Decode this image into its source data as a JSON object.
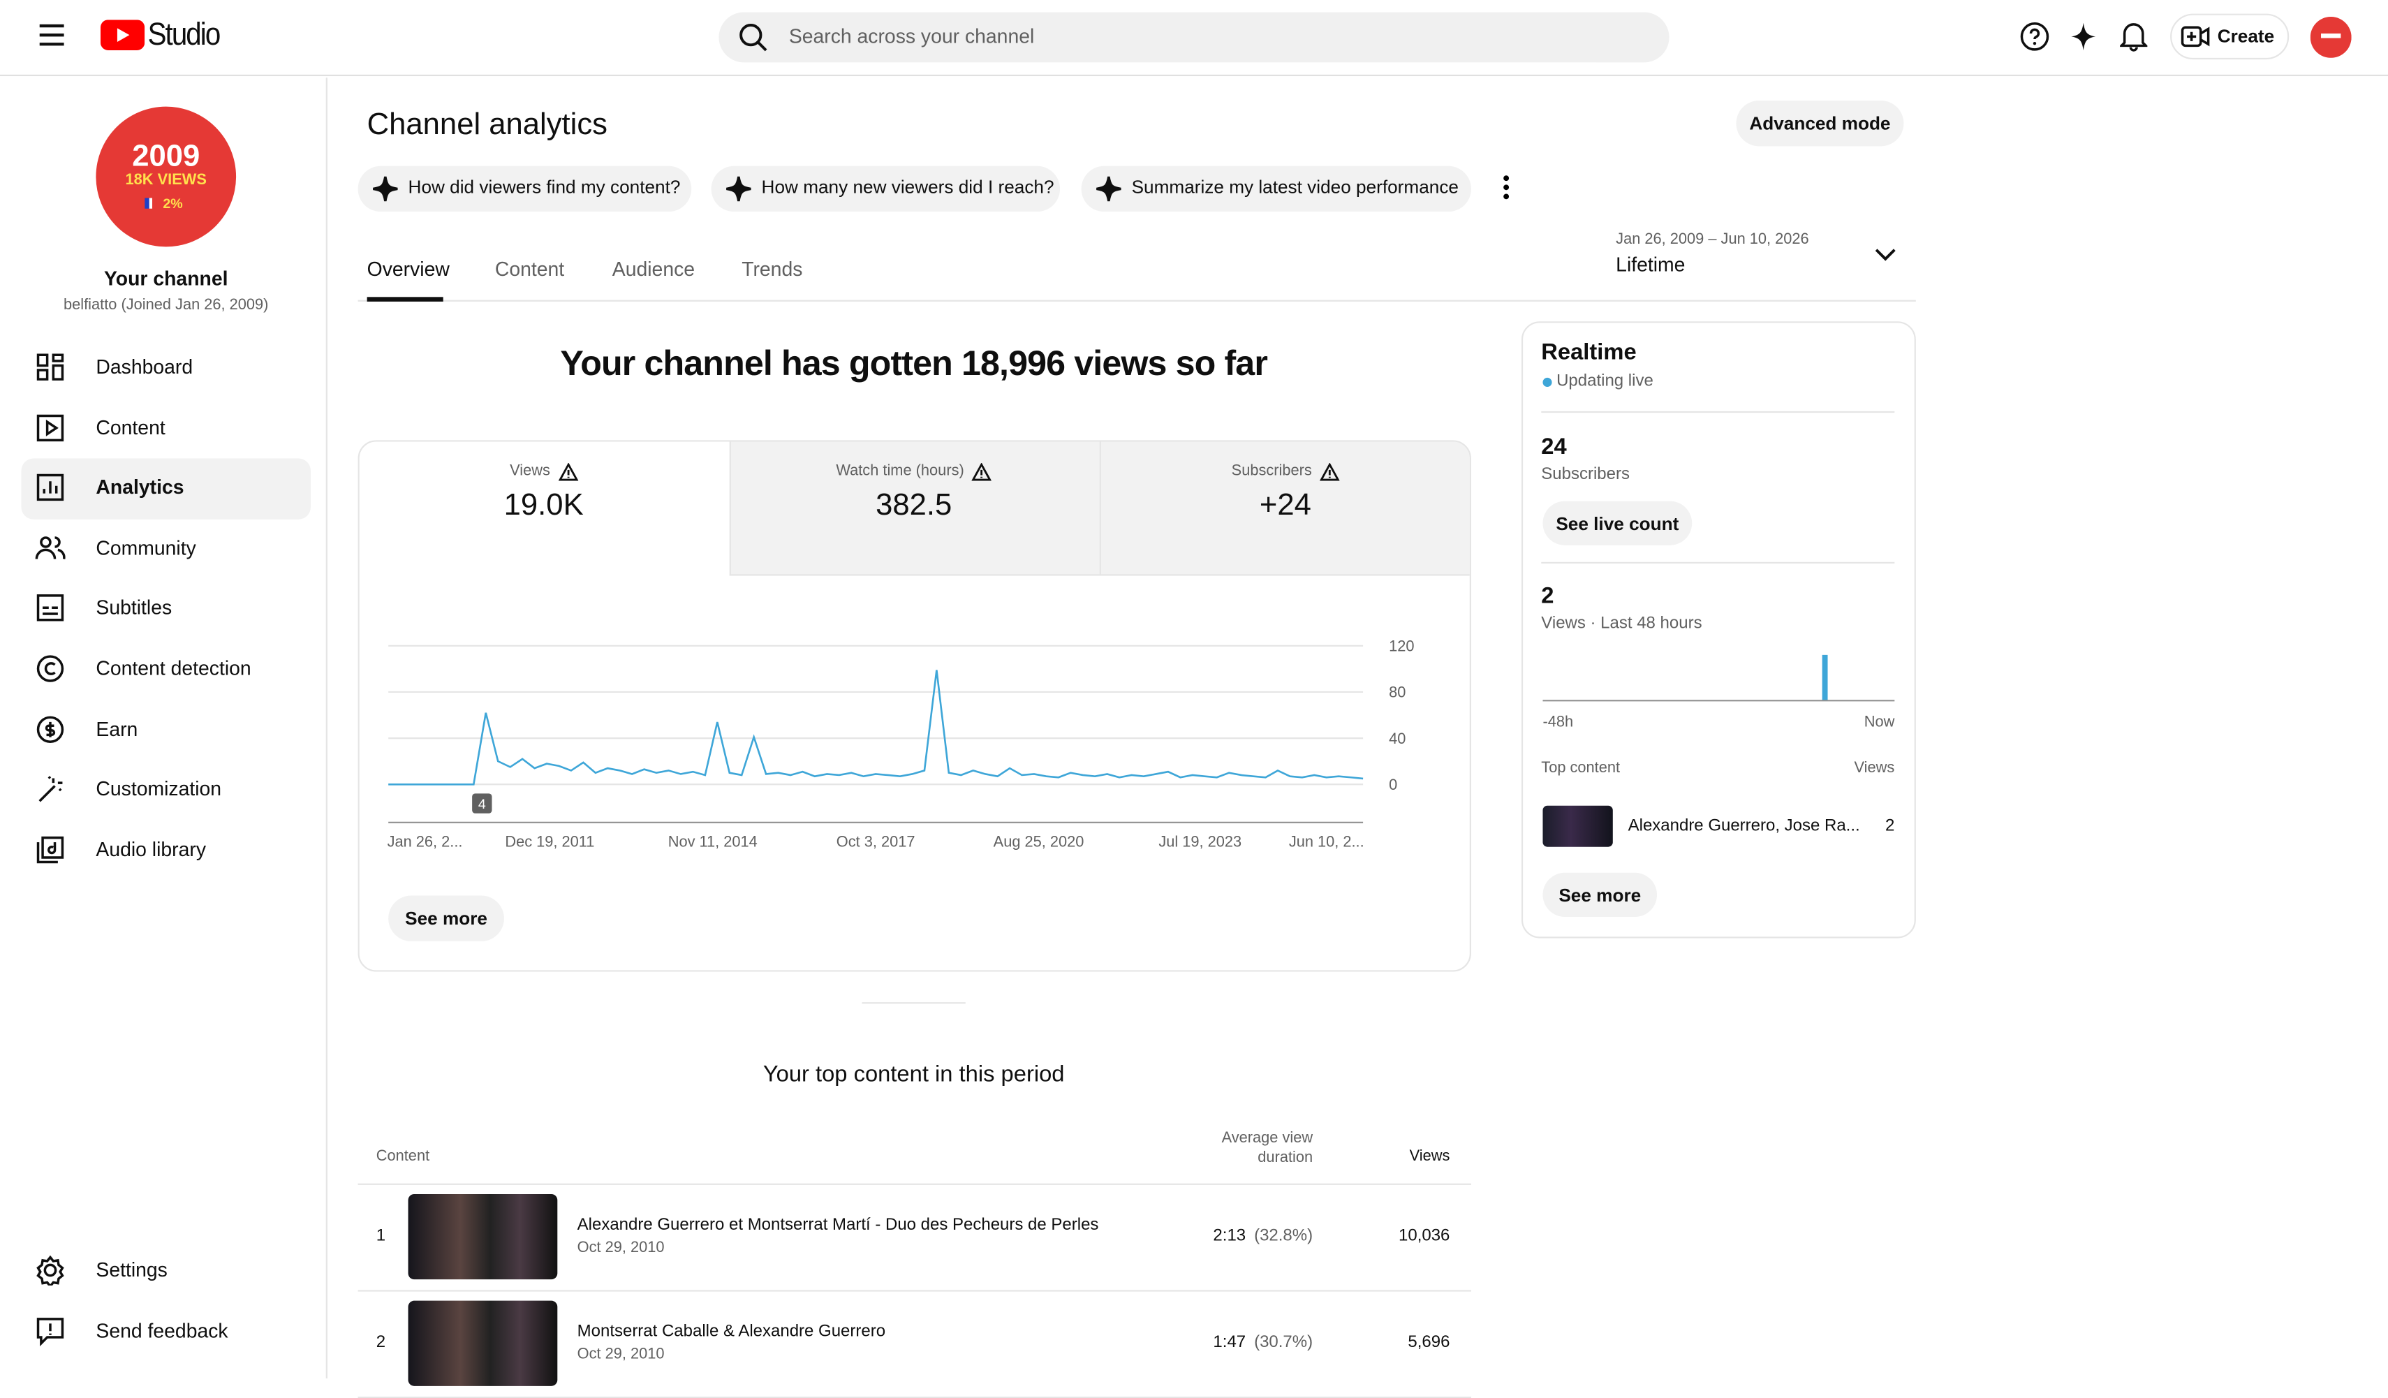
{
  "header": {
    "logo": "Studio",
    "search_placeholder": "Search across your channel",
    "create": "Create"
  },
  "sidebar": {
    "avatar": {
      "year": "2009",
      "views": "18K VIEWS",
      "percent": "2%"
    },
    "channel_title": "Your channel",
    "channel_subtitle": "belfiatto (Joined Jan 26, 2009)",
    "nav": [
      "Dashboard",
      "Content",
      "Analytics",
      "Community",
      "Subtitles",
      "Content detection",
      "Earn",
      "Customization",
      "Audio library"
    ],
    "active_nav": "Analytics",
    "footer_nav": [
      "Settings",
      "Send feedback"
    ]
  },
  "main": {
    "title": "Channel analytics",
    "advanced_mode": "Advanced mode",
    "prompts": [
      "How did viewers find my content?",
      "How many new viewers did I reach?",
      "Summarize my latest video performance"
    ],
    "tabs": [
      "Overview",
      "Content",
      "Audience",
      "Trends"
    ],
    "date_range": "Jan 26, 2009 – Jun 10, 2026",
    "period": "Lifetime",
    "headline": "Your channel has gotten 18,996 views so far",
    "metrics": [
      {
        "label": "Views",
        "value": "19.0K"
      },
      {
        "label": "Watch time (hours)",
        "value": "382.5"
      },
      {
        "label": "Subscribers",
        "value": "+24"
      }
    ],
    "see_more": "See more",
    "top_content_title": "Your top content in this period",
    "table": {
      "headers": [
        "Content",
        "Average view duration",
        "Views"
      ],
      "rows": [
        {
          "rank": "1",
          "title": "Alexandre Guerrero et Montserrat Martí - Duo des Pecheurs de Perles",
          "date": "Oct 29, 2010",
          "duration": "2:13",
          "percent": "(32.8%)",
          "views": "10,036"
        },
        {
          "rank": "2",
          "title": "Montserrat Caballe & Alexandre Guerrero",
          "date": "Oct 29, 2010",
          "duration": "1:47",
          "percent": "(30.7%)",
          "views": "5,696"
        }
      ]
    }
  },
  "realtime": {
    "title": "Realtime",
    "status": "Updating live",
    "subscribers": "24",
    "subscribers_label": "Subscribers",
    "see_live_count": "See live count",
    "views": "2",
    "views_label": "Views · Last 48 hours",
    "top_content_label": "Top content",
    "views_header": "Views",
    "top_item": {
      "title": "Alexandre Guerrero, Jose Ra...",
      "views": "2"
    },
    "see_more": "See more"
  },
  "chart_data": [
    {
      "type": "line",
      "color": "#3ea6d8",
      "grid": true,
      "values": [
        0,
        0,
        0,
        0,
        0,
        0,
        0,
        0,
        62,
        20,
        15,
        22,
        14,
        18,
        16,
        12,
        19,
        10,
        14,
        12,
        9,
        13,
        10,
        12,
        9,
        11,
        8,
        54,
        10,
        8,
        41,
        9,
        10,
        8,
        11,
        7,
        9,
        8,
        10,
        7,
        9,
        8,
        7,
        9,
        12,
        99,
        10,
        8,
        12,
        9,
        7,
        14,
        8,
        9,
        7,
        6,
        10,
        8,
        7,
        9,
        6,
        8,
        7,
        9,
        11,
        6,
        8,
        7,
        6,
        10,
        8,
        7,
        6,
        12,
        7,
        6,
        8,
        6,
        7,
        6,
        5
      ],
      "ylim": [
        0,
        120
      ],
      "yticks": [
        0,
        40,
        80,
        120
      ],
      "xtick_labels": [
        "Jan 26, 2...",
        "Dec 19, 2011",
        "Nov 11, 2014",
        "Oct 3, 2017",
        "Aug 25, 2020",
        "Jul 19, 2023",
        "Jun 10, 2..."
      ],
      "annotations": [
        "4"
      ]
    },
    {
      "type": "bar",
      "color": "#3ea6d8",
      "values": [
        0,
        0,
        0,
        0,
        0,
        0,
        0,
        0,
        0,
        0,
        0,
        0,
        0,
        0,
        0,
        0,
        0,
        0,
        0,
        0,
        0,
        0,
        0,
        0,
        0,
        0,
        0,
        0,
        0,
        0,
        0,
        0,
        0,
        0,
        0,
        0,
        0,
        0,
        2,
        0,
        0,
        0,
        0,
        0,
        0,
        0,
        0,
        0
      ],
      "ylim": [
        0,
        2
      ],
      "xtick_labels": [
        "-48h",
        "Now"
      ]
    }
  ]
}
